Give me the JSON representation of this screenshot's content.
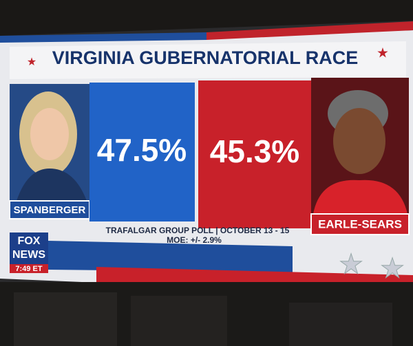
{
  "header": {
    "title": "VIRGINIA GUBERNATORIAL RACE"
  },
  "candidates": [
    {
      "name": "SPANBERGER",
      "result": "47.5%"
    },
    {
      "name": "EARLE-SEARS",
      "result": "45.3%"
    }
  ],
  "source": {
    "poll": "TRAFALGAR GROUP POLL | OCTOBER 13 - 15",
    "moe": "MOE: +/- 2.9%"
  },
  "logo": {
    "line1": "FOX",
    "line2": "NEWS",
    "time": "7:49 ET"
  }
}
